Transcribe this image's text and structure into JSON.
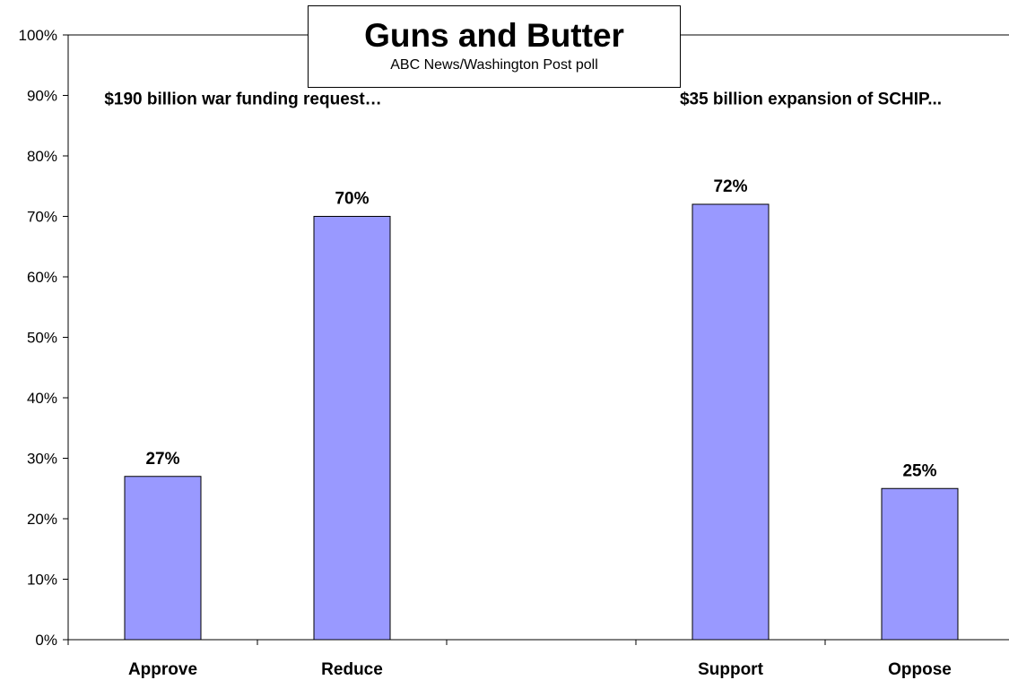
{
  "chart_data": {
    "type": "bar",
    "title": "Guns and Butter",
    "subtitle": "ABC News/Washington Post poll",
    "categories": [
      "Approve",
      "Reduce",
      "",
      "Support",
      "Oppose"
    ],
    "values": [
      27,
      70,
      null,
      72,
      25
    ],
    "data_labels": [
      "27%",
      "70%",
      "",
      "72%",
      "25%"
    ],
    "yticks": [
      "0%",
      "10%",
      "20%",
      "30%",
      "40%",
      "50%",
      "60%",
      "70%",
      "80%",
      "90%",
      "100%"
    ],
    "ylim": [
      0,
      100
    ],
    "annotations": [
      {
        "text": "$190 billion war funding request…",
        "y": 90
      },
      {
        "text": "$35 billion expansion of SCHIP...",
        "y": 90
      }
    ],
    "colors": {
      "bar_fill": "#9999ff",
      "bar_stroke": "#000000",
      "axis": "#000000"
    },
    "grid": false,
    "legend": "none"
  }
}
